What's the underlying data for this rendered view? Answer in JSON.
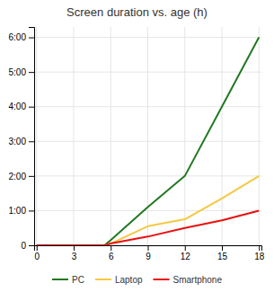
{
  "chart_data": {
    "type": "line",
    "title": "Screen duration vs. age (h)",
    "x": [
      0,
      3,
      5.5,
      6,
      9,
      12,
      15,
      18
    ],
    "series": [
      {
        "name": "PC",
        "color": "#217821",
        "values": [
          0,
          0,
          0,
          0.15,
          1.1,
          2.0,
          4.0,
          6.0
        ]
      },
      {
        "name": "Laptop",
        "color": "#f5c842",
        "values": [
          0,
          0,
          0,
          0.05,
          0.55,
          0.75,
          1.35,
          2.0
        ]
      },
      {
        "name": "Smartphone",
        "color": "#e81010",
        "values": [
          0,
          0,
          0,
          0.05,
          0.25,
          0.5,
          0.72,
          1.0
        ]
      }
    ],
    "xlim": [
      -0.2,
      18.2
    ],
    "xticks": [
      0,
      3,
      6,
      9,
      12,
      15,
      18
    ],
    "ylim": [
      0,
      6.3
    ],
    "yticks": [
      0,
      {
        "value": 1,
        "label": "1:00"
      },
      {
        "value": 2,
        "label": "2:00"
      },
      {
        "value": 3,
        "label": "3:00"
      },
      {
        "value": 4,
        "label": "4:00"
      },
      {
        "value": 5,
        "label": "5:00"
      },
      {
        "value": 6,
        "label": "6:00"
      }
    ],
    "grid": true,
    "legend": "bottom"
  }
}
